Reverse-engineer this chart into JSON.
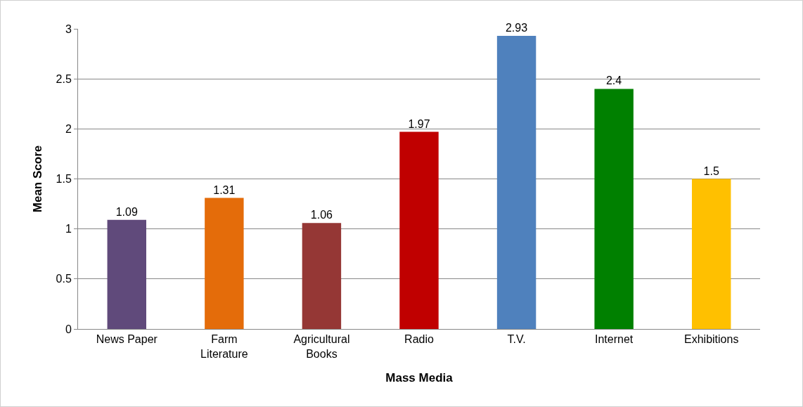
{
  "chart_data": {
    "type": "bar",
    "xlabel": "Mass Media",
    "ylabel": "Mean Score",
    "categories": [
      "News Paper",
      "Farm Literature",
      "Agricultural Books",
      "Radio",
      "T.V.",
      "Internet",
      "Exhibitions"
    ],
    "values": [
      1.09,
      1.31,
      1.06,
      1.97,
      2.93,
      2.4,
      1.5
    ],
    "colors": [
      "#604a7b",
      "#e46c0a",
      "#953735",
      "#c00000",
      "#4f81bd",
      "#008000",
      "#ffc000"
    ],
    "ylim": [
      0,
      3
    ],
    "yticks": [
      0,
      0.5,
      1,
      1.5,
      2,
      2.5,
      3
    ],
    "grid": "y",
    "data_labels": true
  }
}
